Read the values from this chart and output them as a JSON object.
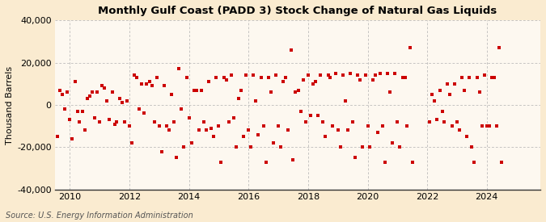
{
  "title": "Monthly Gulf Coast (PADD 3) Stock Change of Natural Gas Liquids",
  "ylabel": "Thousand Barrels",
  "source": "Source: U.S. Energy Information Administration",
  "ylim": [
    -40000,
    40000
  ],
  "yticks": [
    -40000,
    -20000,
    0,
    20000,
    40000
  ],
  "xlim": [
    2009.5,
    2025.8
  ],
  "xticks": [
    2010,
    2012,
    2014,
    2016,
    2018,
    2020,
    2022,
    2024
  ],
  "fig_bg_color": "#faebd0",
  "plot_bg_color": "#fdf8f0",
  "marker_color": "#cc0000",
  "marker_size": 9,
  "grid_color": "#b0b0b0",
  "data": [
    [
      2009.58,
      -15000
    ],
    [
      2009.67,
      7000
    ],
    [
      2009.75,
      5000
    ],
    [
      2009.83,
      -2000
    ],
    [
      2009.92,
      6000
    ],
    [
      2010.0,
      -7000
    ],
    [
      2010.08,
      -16000
    ],
    [
      2010.17,
      11000
    ],
    [
      2010.25,
      -3000
    ],
    [
      2010.33,
      -8000
    ],
    [
      2010.42,
      -3000
    ],
    [
      2010.5,
      -12000
    ],
    [
      2010.58,
      3000
    ],
    [
      2010.67,
      4000
    ],
    [
      2010.75,
      6000
    ],
    [
      2010.83,
      -6000
    ],
    [
      2010.92,
      6000
    ],
    [
      2011.0,
      -8000
    ],
    [
      2011.08,
      9000
    ],
    [
      2011.17,
      8000
    ],
    [
      2011.25,
      2000
    ],
    [
      2011.33,
      -7000
    ],
    [
      2011.42,
      6000
    ],
    [
      2011.5,
      -9000
    ],
    [
      2011.58,
      -8000
    ],
    [
      2011.67,
      3000
    ],
    [
      2011.75,
      1000
    ],
    [
      2011.83,
      -8000
    ],
    [
      2011.92,
      2000
    ],
    [
      2012.0,
      -10000
    ],
    [
      2012.08,
      -18000
    ],
    [
      2012.17,
      14000
    ],
    [
      2012.25,
      13000
    ],
    [
      2012.33,
      -2000
    ],
    [
      2012.42,
      10000
    ],
    [
      2012.5,
      -4000
    ],
    [
      2012.58,
      10000
    ],
    [
      2012.67,
      11000
    ],
    [
      2012.75,
      9000
    ],
    [
      2012.83,
      -8000
    ],
    [
      2012.92,
      13000
    ],
    [
      2013.0,
      -10000
    ],
    [
      2013.08,
      -22000
    ],
    [
      2013.17,
      9000
    ],
    [
      2013.25,
      -10000
    ],
    [
      2013.33,
      -12000
    ],
    [
      2013.42,
      5000
    ],
    [
      2013.5,
      -8000
    ],
    [
      2013.58,
      -25000
    ],
    [
      2013.67,
      17000
    ],
    [
      2013.75,
      -2000
    ],
    [
      2013.83,
      -20000
    ],
    [
      2013.92,
      13000
    ],
    [
      2014.0,
      -6000
    ],
    [
      2014.08,
      -18000
    ],
    [
      2014.17,
      7000
    ],
    [
      2014.25,
      7000
    ],
    [
      2014.33,
      -12000
    ],
    [
      2014.42,
      7000
    ],
    [
      2014.5,
      -8000
    ],
    [
      2014.58,
      -12000
    ],
    [
      2014.67,
      11000
    ],
    [
      2014.75,
      -11000
    ],
    [
      2014.83,
      -15000
    ],
    [
      2014.92,
      13000
    ],
    [
      2015.0,
      -10000
    ],
    [
      2015.08,
      -27000
    ],
    [
      2015.17,
      13000
    ],
    [
      2015.25,
      12000
    ],
    [
      2015.33,
      -8000
    ],
    [
      2015.42,
      14000
    ],
    [
      2015.5,
      -6000
    ],
    [
      2015.58,
      -20000
    ],
    [
      2015.67,
      3000
    ],
    [
      2015.75,
      7000
    ],
    [
      2015.83,
      -15000
    ],
    [
      2015.92,
      14000
    ],
    [
      2016.0,
      -12000
    ],
    [
      2016.08,
      -20000
    ],
    [
      2016.17,
      14000
    ],
    [
      2016.25,
      2000
    ],
    [
      2016.33,
      -14000
    ],
    [
      2016.42,
      13000
    ],
    [
      2016.5,
      -10000
    ],
    [
      2016.58,
      -27000
    ],
    [
      2016.67,
      13000
    ],
    [
      2016.75,
      6000
    ],
    [
      2016.83,
      -18000
    ],
    [
      2016.92,
      14000
    ],
    [
      2017.0,
      -10000
    ],
    [
      2017.08,
      -20000
    ],
    [
      2017.17,
      11000
    ],
    [
      2017.25,
      13000
    ],
    [
      2017.33,
      -12000
    ],
    [
      2017.42,
      26000
    ],
    [
      2017.5,
      -26000
    ],
    [
      2017.58,
      6000
    ],
    [
      2017.67,
      7000
    ],
    [
      2017.75,
      -3000
    ],
    [
      2017.83,
      12000
    ],
    [
      2017.92,
      -8000
    ],
    [
      2018.0,
      14000
    ],
    [
      2018.08,
      -5000
    ],
    [
      2018.17,
      10000
    ],
    [
      2018.25,
      11000
    ],
    [
      2018.33,
      -5000
    ],
    [
      2018.42,
      14000
    ],
    [
      2018.5,
      -8000
    ],
    [
      2018.58,
      -15000
    ],
    [
      2018.67,
      14000
    ],
    [
      2018.75,
      13000
    ],
    [
      2018.83,
      -10000
    ],
    [
      2018.92,
      15000
    ],
    [
      2019.0,
      -12000
    ],
    [
      2019.08,
      -20000
    ],
    [
      2019.17,
      14000
    ],
    [
      2019.25,
      2000
    ],
    [
      2019.33,
      -12000
    ],
    [
      2019.42,
      15000
    ],
    [
      2019.5,
      -8000
    ],
    [
      2019.58,
      -25000
    ],
    [
      2019.67,
      14000
    ],
    [
      2019.75,
      12000
    ],
    [
      2019.83,
      -20000
    ],
    [
      2019.92,
      14000
    ],
    [
      2020.0,
      -10000
    ],
    [
      2020.08,
      -20000
    ],
    [
      2020.17,
      12000
    ],
    [
      2020.25,
      14000
    ],
    [
      2020.33,
      -13000
    ],
    [
      2020.42,
      15000
    ],
    [
      2020.5,
      -10000
    ],
    [
      2020.58,
      -27000
    ],
    [
      2020.67,
      15000
    ],
    [
      2020.75,
      6000
    ],
    [
      2020.83,
      -18000
    ],
    [
      2020.92,
      15000
    ],
    [
      2021.0,
      -8000
    ],
    [
      2021.08,
      -20000
    ],
    [
      2021.17,
      13000
    ],
    [
      2021.25,
      13000
    ],
    [
      2021.33,
      -10000
    ],
    [
      2021.42,
      27000
    ],
    [
      2021.5,
      -27000
    ],
    [
      2022.08,
      -8000
    ],
    [
      2022.17,
      5000
    ],
    [
      2022.25,
      2000
    ],
    [
      2022.33,
      -7000
    ],
    [
      2022.42,
      7000
    ],
    [
      2022.5,
      -3000
    ],
    [
      2022.58,
      -8000
    ],
    [
      2022.67,
      10000
    ],
    [
      2022.75,
      5000
    ],
    [
      2022.83,
      -10000
    ],
    [
      2022.92,
      10000
    ],
    [
      2023.0,
      -8000
    ],
    [
      2023.08,
      -12000
    ],
    [
      2023.17,
      13000
    ],
    [
      2023.25,
      7000
    ],
    [
      2023.33,
      -15000
    ],
    [
      2023.42,
      13000
    ],
    [
      2023.5,
      -20000
    ],
    [
      2023.58,
      -27000
    ],
    [
      2023.67,
      13000
    ],
    [
      2023.75,
      6000
    ],
    [
      2023.83,
      -10000
    ],
    [
      2023.92,
      14000
    ],
    [
      2024.0,
      -10000
    ],
    [
      2024.08,
      -10000
    ],
    [
      2024.17,
      13000
    ],
    [
      2024.25,
      13000
    ],
    [
      2024.33,
      -10000
    ],
    [
      2024.42,
      27000
    ],
    [
      2024.5,
      -27000
    ]
  ]
}
